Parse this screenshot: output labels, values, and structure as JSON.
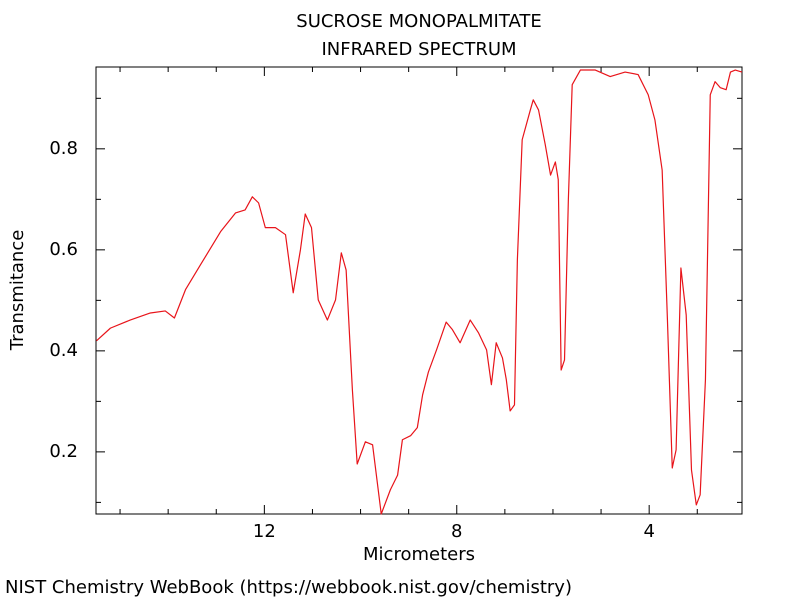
{
  "chart_data": {
    "type": "line",
    "title": "SUCROSE MONOPALMITATE",
    "subtitle": "INFRARED SPECTRUM",
    "x_label": "Micrometers",
    "y_label": "Transmitance",
    "source": "NIST Chemistry WebBook (https://webbook.nist.gov/chemistry)",
    "color": "#e8141a",
    "xlim": [
      15.5,
      2.07
    ],
    "ylim": [
      0.077,
      0.962
    ],
    "xticks": [
      12,
      8,
      4
    ],
    "yticks": [
      0.2,
      0.4,
      0.6,
      0.8
    ],
    "xminorticks": [
      15,
      14,
      13,
      11,
      10,
      9,
      7,
      6,
      5,
      3
    ],
    "yminorticks": [
      0.1,
      0.3,
      0.5,
      0.7,
      0.9
    ],
    "x": [
      15.49,
      15.2,
      14.79,
      14.37,
      14.06,
      13.87,
      13.64,
      13.33,
      12.91,
      12.6,
      12.4,
      12.25,
      12.12,
      11.98,
      11.77,
      11.56,
      11.4,
      11.25,
      11.15,
      11.02,
      10.88,
      10.69,
      10.52,
      10.4,
      10.3,
      10.17,
      10.07,
      9.9,
      9.75,
      9.57,
      9.38,
      9.23,
      9.13,
      8.96,
      8.82,
      8.71,
      8.59,
      8.42,
      8.22,
      8.09,
      7.93,
      7.72,
      7.55,
      7.38,
      7.28,
      7.18,
      7.05,
      6.97,
      6.89,
      6.8,
      6.74,
      6.64,
      6.47,
      6.41,
      6.3,
      6.16,
      6.05,
      5.95,
      5.89,
      5.83,
      5.76,
      5.68,
      5.6,
      5.43,
      5.12,
      4.81,
      4.5,
      4.23,
      4.02,
      3.88,
      3.73,
      3.62,
      3.52,
      3.44,
      3.34,
      3.23,
      3.12,
      3.02,
      2.94,
      2.83,
      2.73,
      2.63,
      2.52,
      2.4,
      2.31,
      2.21,
      2.07
    ],
    "values": [
      0.42,
      0.445,
      0.461,
      0.475,
      0.479,
      0.465,
      0.521,
      0.57,
      0.636,
      0.673,
      0.679,
      0.705,
      0.693,
      0.644,
      0.644,
      0.63,
      0.515,
      0.6,
      0.671,
      0.644,
      0.501,
      0.461,
      0.501,
      0.594,
      0.56,
      0.323,
      0.176,
      0.22,
      0.214,
      0.077,
      0.125,
      0.154,
      0.224,
      0.232,
      0.248,
      0.313,
      0.358,
      0.402,
      0.457,
      0.442,
      0.416,
      0.461,
      0.436,
      0.402,
      0.333,
      0.416,
      0.386,
      0.343,
      0.281,
      0.293,
      0.58,
      0.818,
      0.877,
      0.897,
      0.877,
      0.808,
      0.748,
      0.774,
      0.739,
      0.362,
      0.382,
      0.699,
      0.927,
      0.956,
      0.956,
      0.943,
      0.952,
      0.947,
      0.907,
      0.857,
      0.758,
      0.461,
      0.168,
      0.204,
      0.564,
      0.471,
      0.164,
      0.095,
      0.115,
      0.343,
      0.907,
      0.933,
      0.921,
      0.917,
      0.952,
      0.956,
      0.952
    ]
  }
}
